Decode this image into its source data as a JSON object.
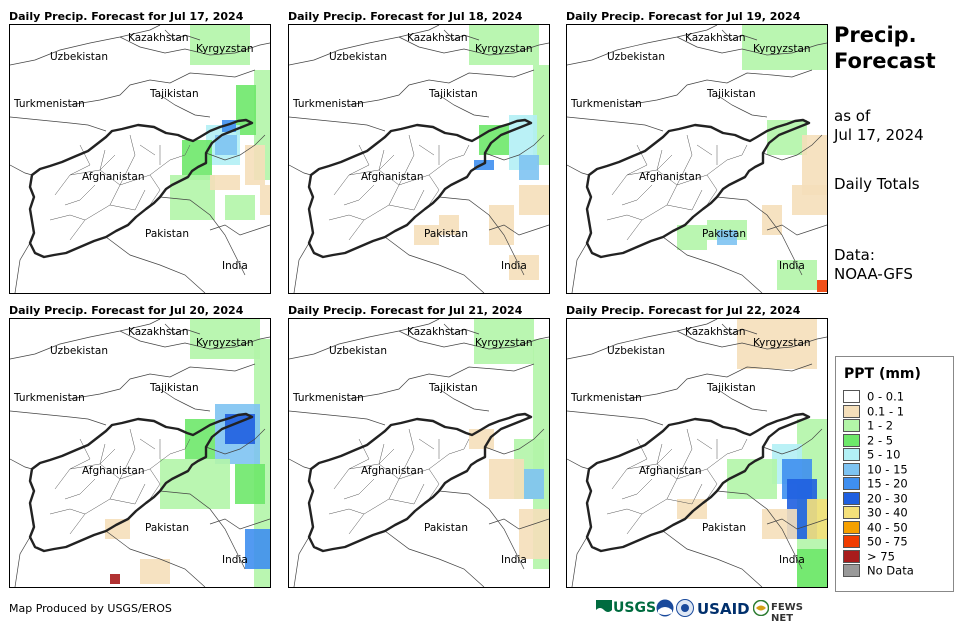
{
  "panels": [
    {
      "title": "Daily Precip. Forecast for Jul 17, 2024"
    },
    {
      "title": "Daily Precip. Forecast for Jul 18, 2024"
    },
    {
      "title": "Daily Precip. Forecast for Jul 19, 2024"
    },
    {
      "title": "Daily Precip. Forecast for Jul 20, 2024"
    },
    {
      "title": "Daily Precip. Forecast for Jul 21, 2024"
    },
    {
      "title": "Daily Precip. Forecast for Jul 22, 2024"
    }
  ],
  "map_labels": {
    "kazakhstan": "Kazakhstan",
    "kyrgyzstan": "Kyrgyzstan",
    "uzbekistan": "Uzbekistan",
    "tajikistan": "Tajikistan",
    "turkmenistan": "Turkmenistan",
    "afghanistan": "Afghanistan",
    "pakistan": "Pakistan",
    "india": "India"
  },
  "side": {
    "title_line1": "Precip.",
    "title_line2": "Forecast",
    "as_of": "as of",
    "date": "Jul 17, 2024",
    "totals": "Daily Totals",
    "data_label": "Data:",
    "data_source": "NOAA-GFS"
  },
  "legend": {
    "title": "PPT (mm)",
    "items": [
      {
        "label": "0 - 0.1",
        "color": "#ffffff"
      },
      {
        "label": "0.1 - 1",
        "color": "#f5dfba"
      },
      {
        "label": "1 - 2",
        "color": "#b3f5a8"
      },
      {
        "label": "2 - 5",
        "color": "#6ee86a"
      },
      {
        "label": "5 - 10",
        "color": "#b2f0f5"
      },
      {
        "label": "10 - 15",
        "color": "#7ec3f2"
      },
      {
        "label": "15 - 20",
        "color": "#3f8ff0"
      },
      {
        "label": "20 - 30",
        "color": "#1f5fe0"
      },
      {
        "label": "30 - 40",
        "color": "#f5e07a"
      },
      {
        "label": "40 - 50",
        "color": "#f5a000"
      },
      {
        "label": "50 - 75",
        "color": "#f03c00"
      },
      {
        "label": "> 75",
        "color": "#a81c1c"
      },
      {
        "label": "No Data",
        "color": "#999999"
      }
    ]
  },
  "footer": {
    "credit": "Map Produced by USGS/EROS"
  },
  "logos": {
    "usgs": "USGS",
    "usaid": "USAID",
    "fews": "FEWS NET"
  },
  "precip_cells": [
    [
      {
        "x": 244,
        "y": 45,
        "w": 16,
        "h": 110,
        "c": 2
      },
      {
        "x": 226,
        "y": 60,
        "w": 20,
        "h": 50,
        "c": 3
      },
      {
        "x": 196,
        "y": 100,
        "w": 34,
        "h": 40,
        "c": 4
      },
      {
        "x": 205,
        "y": 110,
        "w": 22,
        "h": 20,
        "c": 5
      },
      {
        "x": 212,
        "y": 95,
        "w": 14,
        "h": 12,
        "c": 6
      },
      {
        "x": 172,
        "y": 115,
        "w": 30,
        "h": 40,
        "c": 3
      },
      {
        "x": 160,
        "y": 150,
        "w": 45,
        "h": 45,
        "c": 2
      },
      {
        "x": 200,
        "y": 150,
        "w": 30,
        "h": 15,
        "c": 1
      },
      {
        "x": 215,
        "y": 170,
        "w": 30,
        "h": 25,
        "c": 2
      },
      {
        "x": 235,
        "y": 120,
        "w": 20,
        "h": 40,
        "c": 1
      },
      {
        "x": 180,
        "y": 0,
        "w": 60,
        "h": 40,
        "c": 2
      },
      {
        "x": 250,
        "y": 160,
        "w": 10,
        "h": 30,
        "c": 1
      }
    ],
    [
      {
        "x": 244,
        "y": 40,
        "w": 16,
        "h": 100,
        "c": 2
      },
      {
        "x": 220,
        "y": 90,
        "w": 28,
        "h": 55,
        "c": 4
      },
      {
        "x": 190,
        "y": 100,
        "w": 30,
        "h": 30,
        "c": 3
      },
      {
        "x": 230,
        "y": 130,
        "w": 20,
        "h": 25,
        "c": 5
      },
      {
        "x": 180,
        "y": 0,
        "w": 70,
        "h": 40,
        "c": 2
      },
      {
        "x": 230,
        "y": 160,
        "w": 30,
        "h": 30,
        "c": 1
      },
      {
        "x": 200,
        "y": 180,
        "w": 25,
        "h": 40,
        "c": 1
      },
      {
        "x": 150,
        "y": 190,
        "w": 20,
        "h": 20,
        "c": 1
      },
      {
        "x": 125,
        "y": 200,
        "w": 25,
        "h": 20,
        "c": 1
      },
      {
        "x": 220,
        "y": 230,
        "w": 30,
        "h": 25,
        "c": 1
      },
      {
        "x": 185,
        "y": 135,
        "w": 20,
        "h": 10,
        "c": 6
      }
    ],
    [
      {
        "x": 175,
        "y": 0,
        "w": 85,
        "h": 45,
        "c": 2
      },
      {
        "x": 200,
        "y": 95,
        "w": 40,
        "h": 35,
        "c": 2
      },
      {
        "x": 235,
        "y": 110,
        "w": 25,
        "h": 60,
        "c": 1
      },
      {
        "x": 225,
        "y": 160,
        "w": 35,
        "h": 30,
        "c": 1
      },
      {
        "x": 110,
        "y": 200,
        "w": 30,
        "h": 25,
        "c": 2
      },
      {
        "x": 140,
        "y": 195,
        "w": 40,
        "h": 20,
        "c": 2
      },
      {
        "x": 150,
        "y": 205,
        "w": 20,
        "h": 15,
        "c": 5
      },
      {
        "x": 195,
        "y": 180,
        "w": 20,
        "h": 30,
        "c": 1
      },
      {
        "x": 210,
        "y": 235,
        "w": 40,
        "h": 30,
        "c": 2
      },
      {
        "x": 250,
        "y": 255,
        "w": 10,
        "h": 12,
        "c": 10
      }
    ],
    [
      {
        "x": 244,
        "y": 20,
        "w": 16,
        "h": 250,
        "c": 2
      },
      {
        "x": 205,
        "y": 85,
        "w": 45,
        "h": 60,
        "c": 5
      },
      {
        "x": 215,
        "y": 95,
        "w": 30,
        "h": 30,
        "c": 7
      },
      {
        "x": 175,
        "y": 100,
        "w": 30,
        "h": 40,
        "c": 3
      },
      {
        "x": 150,
        "y": 140,
        "w": 70,
        "h": 50,
        "c": 2
      },
      {
        "x": 180,
        "y": 0,
        "w": 70,
        "h": 40,
        "c": 2
      },
      {
        "x": 225,
        "y": 145,
        "w": 30,
        "h": 40,
        "c": 3
      },
      {
        "x": 95,
        "y": 200,
        "w": 25,
        "h": 20,
        "c": 1
      },
      {
        "x": 235,
        "y": 210,
        "w": 25,
        "h": 40,
        "c": 6
      },
      {
        "x": 130,
        "y": 240,
        "w": 30,
        "h": 25,
        "c": 1
      },
      {
        "x": 100,
        "y": 255,
        "w": 10,
        "h": 10,
        "c": 11
      }
    ],
    [
      {
        "x": 244,
        "y": 20,
        "w": 16,
        "h": 230,
        "c": 2
      },
      {
        "x": 225,
        "y": 120,
        "w": 30,
        "h": 60,
        "c": 2
      },
      {
        "x": 235,
        "y": 150,
        "w": 20,
        "h": 30,
        "c": 5
      },
      {
        "x": 185,
        "y": 0,
        "w": 60,
        "h": 45,
        "c": 2
      },
      {
        "x": 200,
        "y": 140,
        "w": 35,
        "h": 40,
        "c": 1
      },
      {
        "x": 230,
        "y": 190,
        "w": 30,
        "h": 50,
        "c": 1
      },
      {
        "x": 180,
        "y": 110,
        "w": 25,
        "h": 20,
        "c": 1
      }
    ],
    [
      {
        "x": 230,
        "y": 100,
        "w": 30,
        "h": 168,
        "c": 2
      },
      {
        "x": 205,
        "y": 125,
        "w": 30,
        "h": 40,
        "c": 4
      },
      {
        "x": 215,
        "y": 140,
        "w": 30,
        "h": 40,
        "c": 6
      },
      {
        "x": 220,
        "y": 160,
        "w": 30,
        "h": 60,
        "c": 7
      },
      {
        "x": 240,
        "y": 180,
        "w": 20,
        "h": 40,
        "c": 8
      },
      {
        "x": 160,
        "y": 140,
        "w": 50,
        "h": 40,
        "c": 2
      },
      {
        "x": 170,
        "y": 0,
        "w": 80,
        "h": 50,
        "c": 1
      },
      {
        "x": 195,
        "y": 190,
        "w": 35,
        "h": 30,
        "c": 1
      },
      {
        "x": 230,
        "y": 230,
        "w": 30,
        "h": 38,
        "c": 3
      },
      {
        "x": 110,
        "y": 180,
        "w": 30,
        "h": 20,
        "c": 1
      }
    ]
  ]
}
